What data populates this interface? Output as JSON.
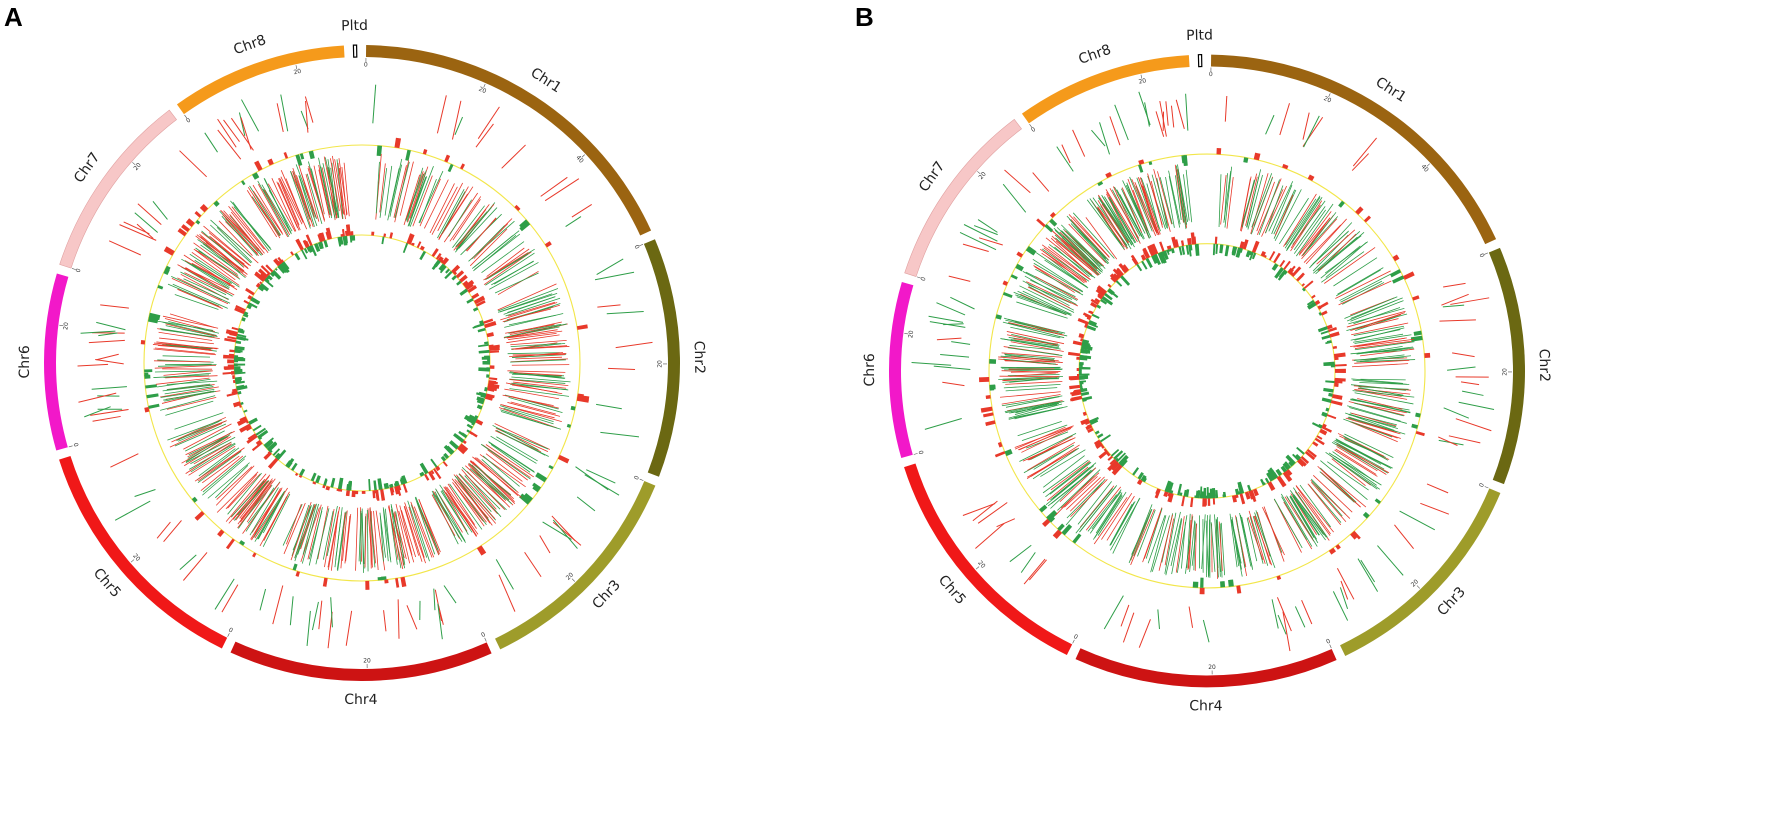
{
  "panels": [
    {
      "id": "A",
      "label": "A",
      "seed": 7
    },
    {
      "id": "B",
      "label": "B",
      "seed": 42
    }
  ],
  "chromosomes": [
    {
      "name": "Chr1",
      "size": 56,
      "color": "#9b6411"
    },
    {
      "name": "Chr2",
      "size": 38,
      "color": "#6b6812"
    },
    {
      "name": "Chr3",
      "size": 36,
      "color": "#9e9c2a"
    },
    {
      "name": "Chr4",
      "size": 42,
      "color": "#cd1313"
    },
    {
      "name": "Chr5",
      "size": 40,
      "color": "#f01818"
    },
    {
      "name": "Chr6",
      "size": 28,
      "color": "#f218c9"
    },
    {
      "name": "Chr7",
      "size": 30,
      "color": "#f7c7c7"
    },
    {
      "name": "Chr8",
      "size": 28,
      "color": "#f59a1b"
    },
    {
      "name": "Pltd",
      "size": 0.5,
      "color": "#ffffff"
    }
  ],
  "tick_values": [
    "0",
    "20",
    "40"
  ],
  "colors": {
    "up": "#e8392a",
    "down": "#2e9e48",
    "ring": "#f2e64a"
  }
}
